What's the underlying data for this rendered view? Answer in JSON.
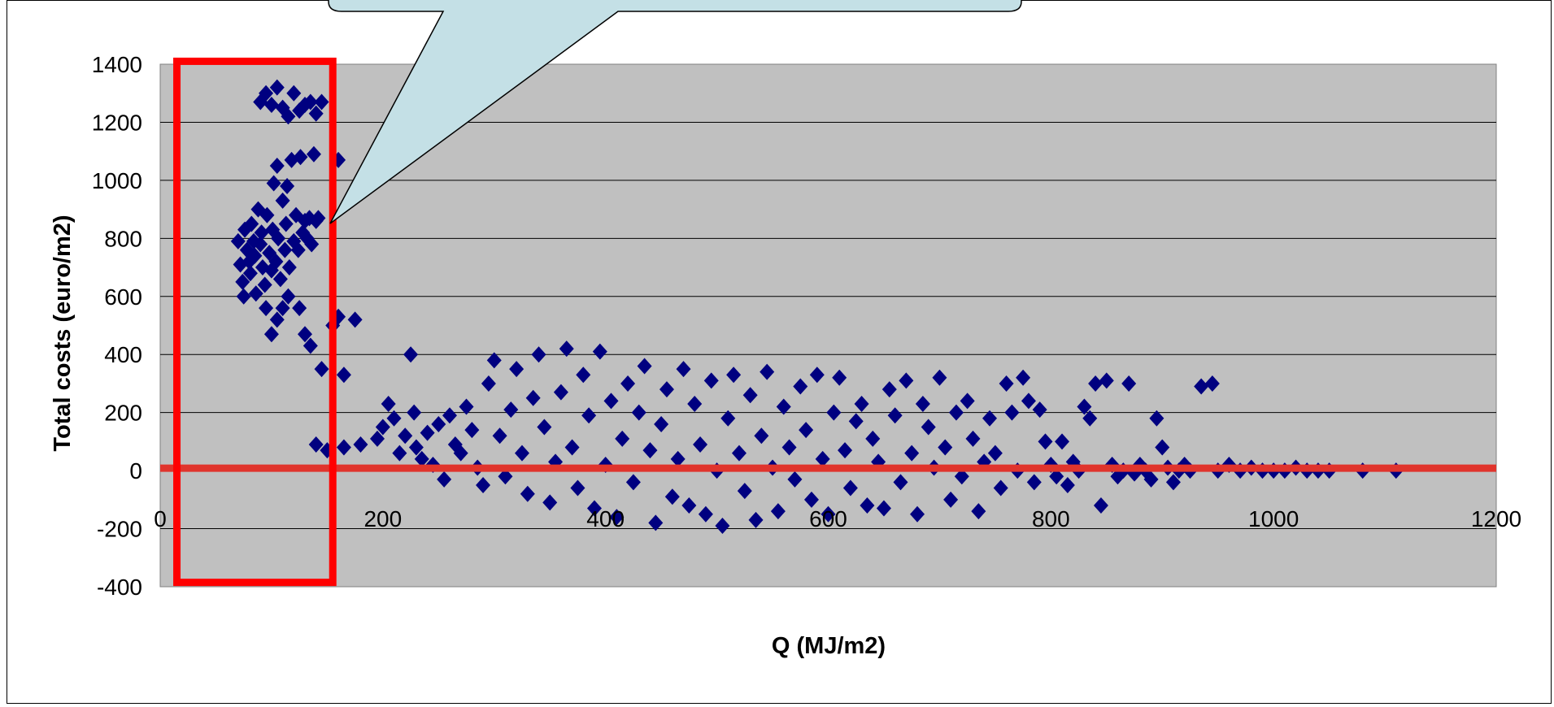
{
  "chart_data": {
    "type": "scatter",
    "title": "",
    "xlabel": "Q (MJ/m2)",
    "ylabel": "Total costs (euro/m2)",
    "xlim": [
      0,
      1200
    ],
    "ylim": [
      -400,
      1400
    ],
    "x_ticks": [
      "0",
      "200",
      "400",
      "600",
      "800",
      "1000",
      "1200"
    ],
    "y_ticks": [
      "-400",
      "-200",
      "0",
      "200",
      "400",
      "600",
      "800",
      "1000",
      "1200",
      "1400"
    ],
    "grid": "horizontal",
    "legend": "none",
    "colors": {
      "plot_background": "#c0c0c0",
      "marker": "#000080",
      "reference_line": "#e0342c",
      "highlight_box": "#ff0000",
      "callout_fill": "#c4e0e6"
    },
    "reference_line_y": 0,
    "highlight_region": {
      "x_range": [
        15,
        155
      ],
      "y_range": [
        -385,
        1410
      ]
    },
    "series": [
      {
        "marker": "diamond",
        "points": [
          [
            70,
            790
          ],
          [
            72,
            710
          ],
          [
            74,
            650
          ],
          [
            75,
            600
          ],
          [
            76,
            830
          ],
          [
            78,
            760
          ],
          [
            80,
            720
          ],
          [
            81,
            680
          ],
          [
            82,
            850
          ],
          [
            84,
            790
          ],
          [
            85,
            740
          ],
          [
            86,
            610
          ],
          [
            88,
            900
          ],
          [
            90,
            780
          ],
          [
            91,
            820
          ],
          [
            92,
            700
          ],
          [
            94,
            640
          ],
          [
            95,
            560
          ],
          [
            96,
            880
          ],
          [
            98,
            750
          ],
          [
            100,
            690
          ],
          [
            101,
            830
          ],
          [
            102,
            990
          ],
          [
            104,
            720
          ],
          [
            105,
            1050
          ],
          [
            106,
            800
          ],
          [
            108,
            660
          ],
          [
            110,
            930
          ],
          [
            112,
            760
          ],
          [
            113,
            850
          ],
          [
            114,
            980
          ],
          [
            116,
            700
          ],
          [
            118,
            1070
          ],
          [
            120,
            790
          ],
          [
            122,
            880
          ],
          [
            124,
            760
          ],
          [
            126,
            1080
          ],
          [
            128,
            820
          ],
          [
            130,
            860
          ],
          [
            132,
            800
          ],
          [
            134,
            870
          ],
          [
            136,
            780
          ],
          [
            138,
            1090
          ],
          [
            140,
            860
          ],
          [
            142,
            870
          ],
          [
            110,
            1250
          ],
          [
            115,
            1220
          ],
          [
            120,
            1300
          ],
          [
            125,
            1240
          ],
          [
            90,
            1270
          ],
          [
            95,
            1300
          ],
          [
            100,
            1260
          ],
          [
            105,
            1320
          ],
          [
            130,
            1260
          ],
          [
            135,
            1270
          ],
          [
            140,
            1230
          ],
          [
            145,
            1270
          ],
          [
            160,
            1070
          ],
          [
            100,
            470
          ],
          [
            105,
            520
          ],
          [
            110,
            560
          ],
          [
            115,
            600
          ],
          [
            125,
            560
          ],
          [
            130,
            470
          ],
          [
            135,
            430
          ],
          [
            145,
            350
          ],
          [
            155,
            500
          ],
          [
            160,
            530
          ],
          [
            165,
            330
          ],
          [
            175,
            520
          ],
          [
            140,
            90
          ],
          [
            150,
            70
          ],
          [
            165,
            80
          ],
          [
            180,
            90
          ],
          [
            195,
            110
          ],
          [
            200,
            150
          ],
          [
            205,
            230
          ],
          [
            210,
            180
          ],
          [
            215,
            60
          ],
          [
            220,
            120
          ],
          [
            225,
            400
          ],
          [
            228,
            200
          ],
          [
            230,
            80
          ],
          [
            235,
            40
          ],
          [
            240,
            130
          ],
          [
            245,
            20
          ],
          [
            250,
            160
          ],
          [
            255,
            -30
          ],
          [
            260,
            190
          ],
          [
            265,
            90
          ],
          [
            270,
            60
          ],
          [
            275,
            220
          ],
          [
            280,
            140
          ],
          [
            285,
            10
          ],
          [
            290,
            -50
          ],
          [
            295,
            300
          ],
          [
            300,
            380
          ],
          [
            305,
            120
          ],
          [
            310,
            -20
          ],
          [
            315,
            210
          ],
          [
            320,
            350
          ],
          [
            325,
            60
          ],
          [
            330,
            -80
          ],
          [
            335,
            250
          ],
          [
            340,
            400
          ],
          [
            345,
            150
          ],
          [
            350,
            -110
          ],
          [
            355,
            30
          ],
          [
            360,
            270
          ],
          [
            365,
            420
          ],
          [
            370,
            80
          ],
          [
            375,
            -60
          ],
          [
            380,
            330
          ],
          [
            385,
            190
          ],
          [
            390,
            -130
          ],
          [
            395,
            410
          ],
          [
            400,
            20
          ],
          [
            405,
            240
          ],
          [
            410,
            -160
          ],
          [
            415,
            110
          ],
          [
            420,
            300
          ],
          [
            425,
            -40
          ],
          [
            430,
            200
          ],
          [
            435,
            360
          ],
          [
            440,
            70
          ],
          [
            445,
            -180
          ],
          [
            450,
            160
          ],
          [
            455,
            280
          ],
          [
            460,
            -90
          ],
          [
            465,
            40
          ],
          [
            470,
            350
          ],
          [
            475,
            -120
          ],
          [
            480,
            230
          ],
          [
            485,
            90
          ],
          [
            490,
            -150
          ],
          [
            495,
            310
          ],
          [
            500,
            0
          ],
          [
            505,
            -190
          ],
          [
            510,
            180
          ],
          [
            515,
            330
          ],
          [
            520,
            60
          ],
          [
            525,
            -70
          ],
          [
            530,
            260
          ],
          [
            535,
            -170
          ],
          [
            540,
            120
          ],
          [
            545,
            340
          ],
          [
            550,
            10
          ],
          [
            555,
            -140
          ],
          [
            560,
            220
          ],
          [
            565,
            80
          ],
          [
            570,
            -30
          ],
          [
            575,
            290
          ],
          [
            580,
            140
          ],
          [
            585,
            -100
          ],
          [
            590,
            330
          ],
          [
            595,
            40
          ],
          [
            600,
            -150
          ],
          [
            605,
            200
          ],
          [
            610,
            320
          ],
          [
            615,
            70
          ],
          [
            620,
            -60
          ],
          [
            625,
            170
          ],
          [
            630,
            230
          ],
          [
            635,
            -120
          ],
          [
            640,
            110
          ],
          [
            645,
            30
          ],
          [
            650,
            -130
          ],
          [
            655,
            280
          ],
          [
            660,
            190
          ],
          [
            665,
            -40
          ],
          [
            670,
            310
          ],
          [
            675,
            60
          ],
          [
            680,
            -150
          ],
          [
            685,
            230
          ],
          [
            690,
            150
          ],
          [
            695,
            10
          ],
          [
            700,
            320
          ],
          [
            705,
            80
          ],
          [
            710,
            -100
          ],
          [
            715,
            200
          ],
          [
            720,
            -20
          ],
          [
            725,
            240
          ],
          [
            730,
            110
          ],
          [
            735,
            -140
          ],
          [
            740,
            30
          ],
          [
            745,
            180
          ],
          [
            750,
            60
          ],
          [
            755,
            -60
          ],
          [
            760,
            300
          ],
          [
            765,
            200
          ],
          [
            770,
            0
          ],
          [
            775,
            320
          ],
          [
            780,
            240
          ],
          [
            785,
            -40
          ],
          [
            790,
            210
          ],
          [
            795,
            100
          ],
          [
            800,
            20
          ],
          [
            805,
            -20
          ],
          [
            810,
            100
          ],
          [
            815,
            -50
          ],
          [
            820,
            30
          ],
          [
            825,
            0
          ],
          [
            830,
            220
          ],
          [
            835,
            180
          ],
          [
            840,
            300
          ],
          [
            845,
            -120
          ],
          [
            850,
            310
          ],
          [
            855,
            20
          ],
          [
            860,
            -20
          ],
          [
            865,
            0
          ],
          [
            870,
            300
          ],
          [
            875,
            -10
          ],
          [
            880,
            20
          ],
          [
            885,
            0
          ],
          [
            890,
            -30
          ],
          [
            895,
            180
          ],
          [
            900,
            80
          ],
          [
            905,
            10
          ],
          [
            910,
            -40
          ],
          [
            915,
            0
          ],
          [
            920,
            20
          ],
          [
            925,
            0
          ],
          [
            935,
            290
          ],
          [
            945,
            300
          ],
          [
            950,
            0
          ],
          [
            960,
            20
          ],
          [
            970,
            0
          ],
          [
            980,
            10
          ],
          [
            990,
            0
          ],
          [
            1000,
            0
          ],
          [
            1010,
            0
          ],
          [
            1020,
            10
          ],
          [
            1030,
            0
          ],
          [
            1040,
            0
          ],
          [
            1050,
            0
          ],
          [
            1080,
            0
          ],
          [
            1110,
            0
          ]
        ]
      }
    ]
  }
}
